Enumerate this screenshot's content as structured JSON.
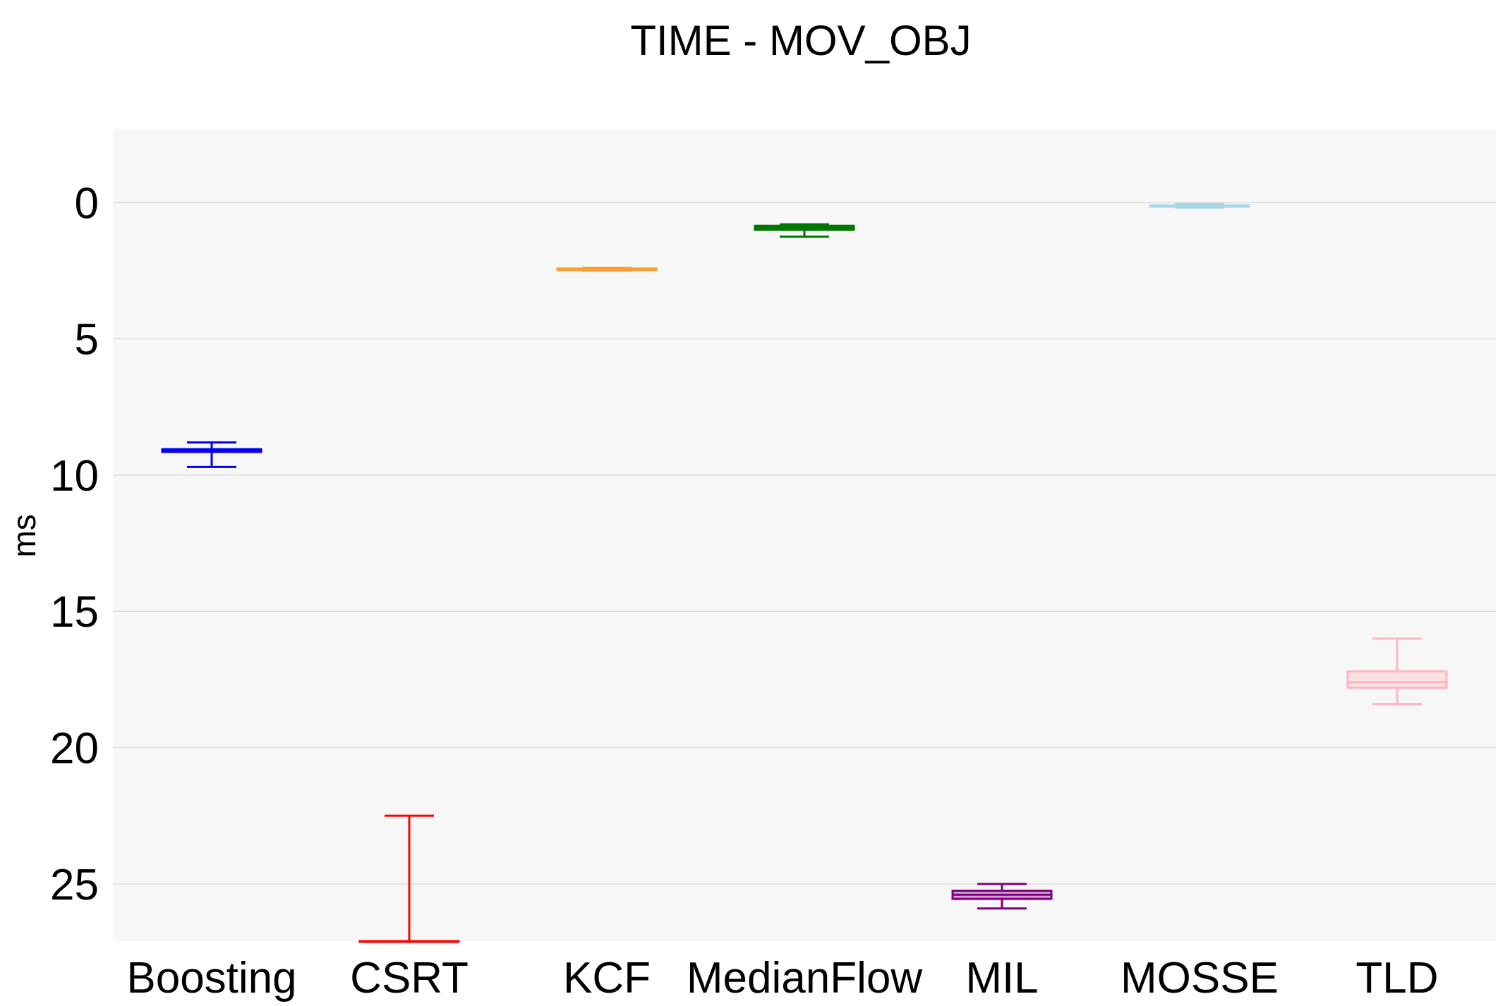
{
  "chart_data": {
    "type": "box",
    "title": "TIME - MOV_OBJ",
    "xlabel": "",
    "ylabel": "ms",
    "y_axis_reversed": true,
    "ylim": [
      -2.7,
      27.1
    ],
    "yticks": [
      0,
      5,
      10,
      15,
      20,
      25
    ],
    "ytick_labels": [
      "0",
      "5",
      "10",
      "15",
      "20",
      "25"
    ],
    "grid": true,
    "legend": "none",
    "plot_background": "#f7f7f7",
    "grid_color": "#dddddd",
    "categories": [
      "Boosting",
      "CSRT",
      "KCF",
      "MedianFlow",
      "MIL",
      "MOSSE",
      "TLD"
    ],
    "series": [
      {
        "category": "Boosting",
        "color": "#0000ee",
        "min": 8.8,
        "q1": 9.05,
        "median": 9.1,
        "q3": 9.15,
        "max": 9.7
      },
      {
        "category": "CSRT",
        "color": "#ff0000",
        "min": 22.5,
        "q1": 27.1,
        "median": 27.1,
        "q3": 27.1,
        "max": 27.1
      },
      {
        "category": "KCF",
        "color": "#f5a030",
        "min": 2.4,
        "q1": 2.42,
        "median": 2.45,
        "q3": 2.48,
        "max": 2.5
      },
      {
        "category": "MedianFlow",
        "color": "#007700",
        "min": 0.8,
        "q1": 0.85,
        "median": 0.92,
        "q3": 1.0,
        "max": 1.25
      },
      {
        "category": "MIL",
        "color": "#800080",
        "min": 25.0,
        "q1": 25.25,
        "median": 25.4,
        "q3": 25.55,
        "max": 25.9
      },
      {
        "category": "MOSSE",
        "color": "#a8d8e8",
        "min": 0.05,
        "q1": 0.1,
        "median": 0.12,
        "q3": 0.15,
        "max": 0.18
      },
      {
        "category": "TLD",
        "color": "#ffb6c1",
        "min": 16.0,
        "q1": 17.2,
        "median": 17.6,
        "q3": 17.8,
        "max": 18.4
      }
    ]
  }
}
